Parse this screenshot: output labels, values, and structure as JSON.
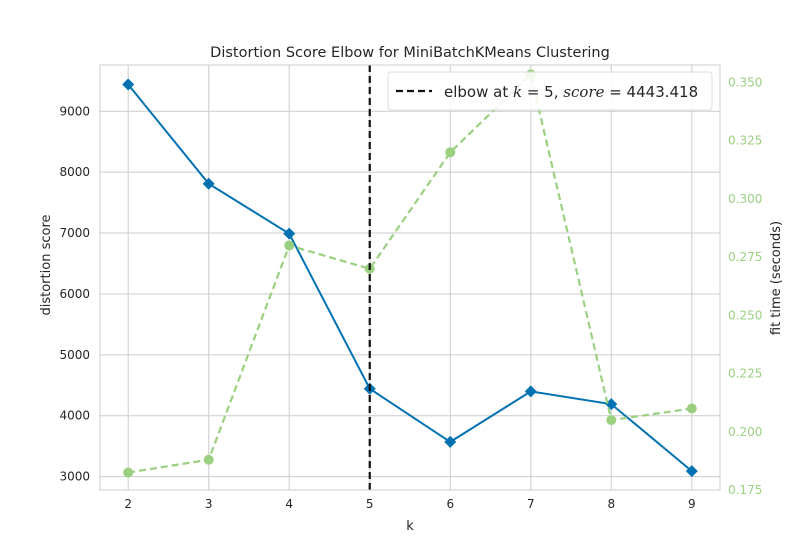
{
  "chart_data": {
    "type": "line",
    "title": "Distortion Score Elbow for MiniBatchKMeans Clustering",
    "xlabel": "k",
    "ylabel": "distortion score",
    "y2label": "fit time (seconds)",
    "x": [
      2,
      3,
      4,
      5,
      6,
      7,
      8,
      9
    ],
    "xlim": [
      1.65,
      9.35
    ],
    "ylim": [
      2780,
      9760
    ],
    "y2lim": [
      0.175,
      0.3575
    ],
    "yticks": [
      3000,
      4000,
      5000,
      6000,
      7000,
      8000,
      9000
    ],
    "y2ticks": [
      0.175,
      0.2,
      0.225,
      0.25,
      0.275,
      0.3,
      0.325,
      0.35
    ],
    "y2tick_labels": [
      "0.175",
      "0.200",
      "0.225",
      "0.250",
      "0.275",
      "0.300",
      "0.325",
      "0.350"
    ],
    "grid": true,
    "legend_position": "top-right",
    "series": [
      {
        "values": [
          9440,
          7810,
          6990,
          4443.418,
          3570,
          4400,
          4190,
          3090
        ],
        "color": "#0072b2",
        "marker": "diamond",
        "axis": "left"
      },
      {
        "values": [
          0.1825,
          0.188,
          0.28,
          0.27,
          0.32,
          0.3535,
          0.205,
          0.21
        ],
        "color": "#9bd081",
        "marker": "circle",
        "line_style": "dashed",
        "axis": "right"
      }
    ],
    "elbow": {
      "k": 5,
      "score": 4443.418,
      "legend": {
        "prefix": "elbow at ",
        "k_var": "k",
        "k_text": " = 5, ",
        "score_var": "score",
        "score_text": " = 4443.418"
      },
      "color": "#111111"
    },
    "right_axis_color": "#9bd081"
  }
}
